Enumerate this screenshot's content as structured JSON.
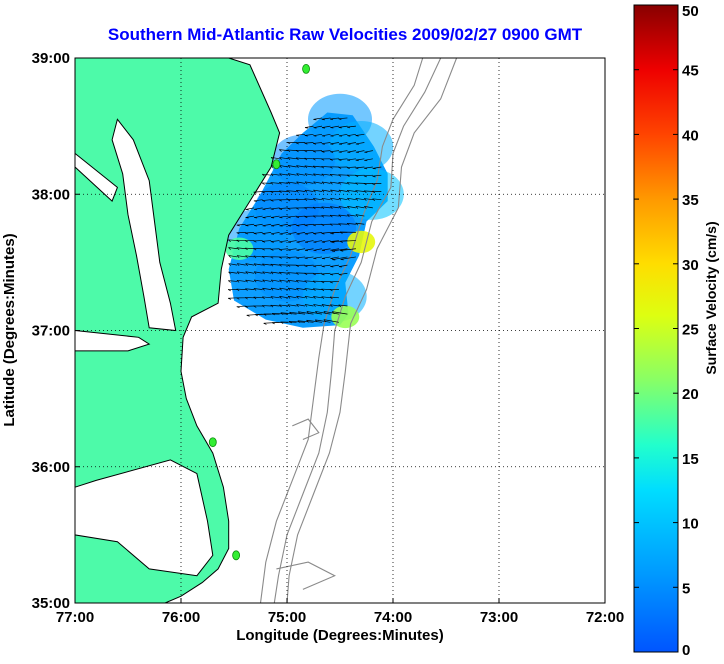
{
  "chart_data": {
    "type": "heatmap",
    "title": "Southern Mid-Atlantic Raw Velocities 2009/02/27 0900 GMT",
    "xlabel": "Longitude (Degrees:Minutes)",
    "ylabel": "Latitude (Degrees:Minutes)",
    "xlim": [
      -77,
      -72
    ],
    "ylim": [
      35,
      39
    ],
    "x_ticks": [
      {
        "value": -77,
        "label": "77:00"
      },
      {
        "value": -76,
        "label": "76:00"
      },
      {
        "value": -75,
        "label": "75:00"
      },
      {
        "value": -74,
        "label": "74:00"
      },
      {
        "value": -73,
        "label": "73:00"
      },
      {
        "value": -72,
        "label": "72:00"
      }
    ],
    "y_ticks": [
      {
        "value": 39,
        "label": "39:00"
      },
      {
        "value": 38,
        "label": "38:00"
      },
      {
        "value": 37,
        "label": "37:00"
      },
      {
        "value": 36,
        "label": "36:00"
      },
      {
        "value": 35,
        "label": "35:00"
      }
    ],
    "grid": true,
    "grid_style": "dotted",
    "colorbar": {
      "label": "Surface Velocity (cm/s)",
      "min": 0,
      "max": 50,
      "colormap": "jet",
      "ticks": [
        {
          "value": 50,
          "label": "50"
        },
        {
          "value": 45,
          "label": "45"
        },
        {
          "value": 40,
          "label": "40"
        },
        {
          "value": 35,
          "label": "35"
        },
        {
          "value": 30,
          "label": "30"
        },
        {
          "value": 25,
          "label": "25"
        },
        {
          "value": 20,
          "label": "20"
        },
        {
          "value": 15,
          "label": "15"
        },
        {
          "value": 10,
          "label": "10"
        },
        {
          "value": 5,
          "label": "5"
        },
        {
          "value": 0,
          "label": "0"
        }
      ]
    },
    "stations": [
      {
        "lon": -74.82,
        "lat": 38.92
      },
      {
        "lon": -75.1,
        "lat": 38.22
      },
      {
        "lon": -75.7,
        "lat": 36.18
      },
      {
        "lon": -75.48,
        "lat": 35.35
      }
    ],
    "velocity_field": {
      "coverage_lon": [
        -75.55,
        -74.0
      ],
      "coverage_lat": [
        37.0,
        38.6
      ],
      "min_speed": 2,
      "max_speed": 30,
      "speed_unit": "cm/s",
      "samples": [
        {
          "lon": -74.5,
          "lat": 38.55,
          "speed": 6
        },
        {
          "lon": -74.3,
          "lat": 38.35,
          "speed": 8
        },
        {
          "lon": -74.85,
          "lat": 38.25,
          "speed": 5
        },
        {
          "lon": -74.2,
          "lat": 38.0,
          "speed": 10
        },
        {
          "lon": -75.0,
          "lat": 37.9,
          "speed": 4
        },
        {
          "lon": -75.3,
          "lat": 37.7,
          "speed": 6
        },
        {
          "lon": -74.65,
          "lat": 37.75,
          "speed": 3
        },
        {
          "lon": -74.3,
          "lat": 37.65,
          "speed": 27
        },
        {
          "lon": -75.45,
          "lat": 37.6,
          "speed": 18
        },
        {
          "lon": -75.0,
          "lat": 37.4,
          "speed": 5
        },
        {
          "lon": -74.55,
          "lat": 37.25,
          "speed": 8
        },
        {
          "lon": -74.45,
          "lat": 37.1,
          "speed": 22
        }
      ]
    }
  },
  "colors": {
    "title": "#0000ff",
    "land": "#4dfaa9",
    "coast": "#000000",
    "bathymetry": "#8a8a8a",
    "station": "#33ee33"
  }
}
